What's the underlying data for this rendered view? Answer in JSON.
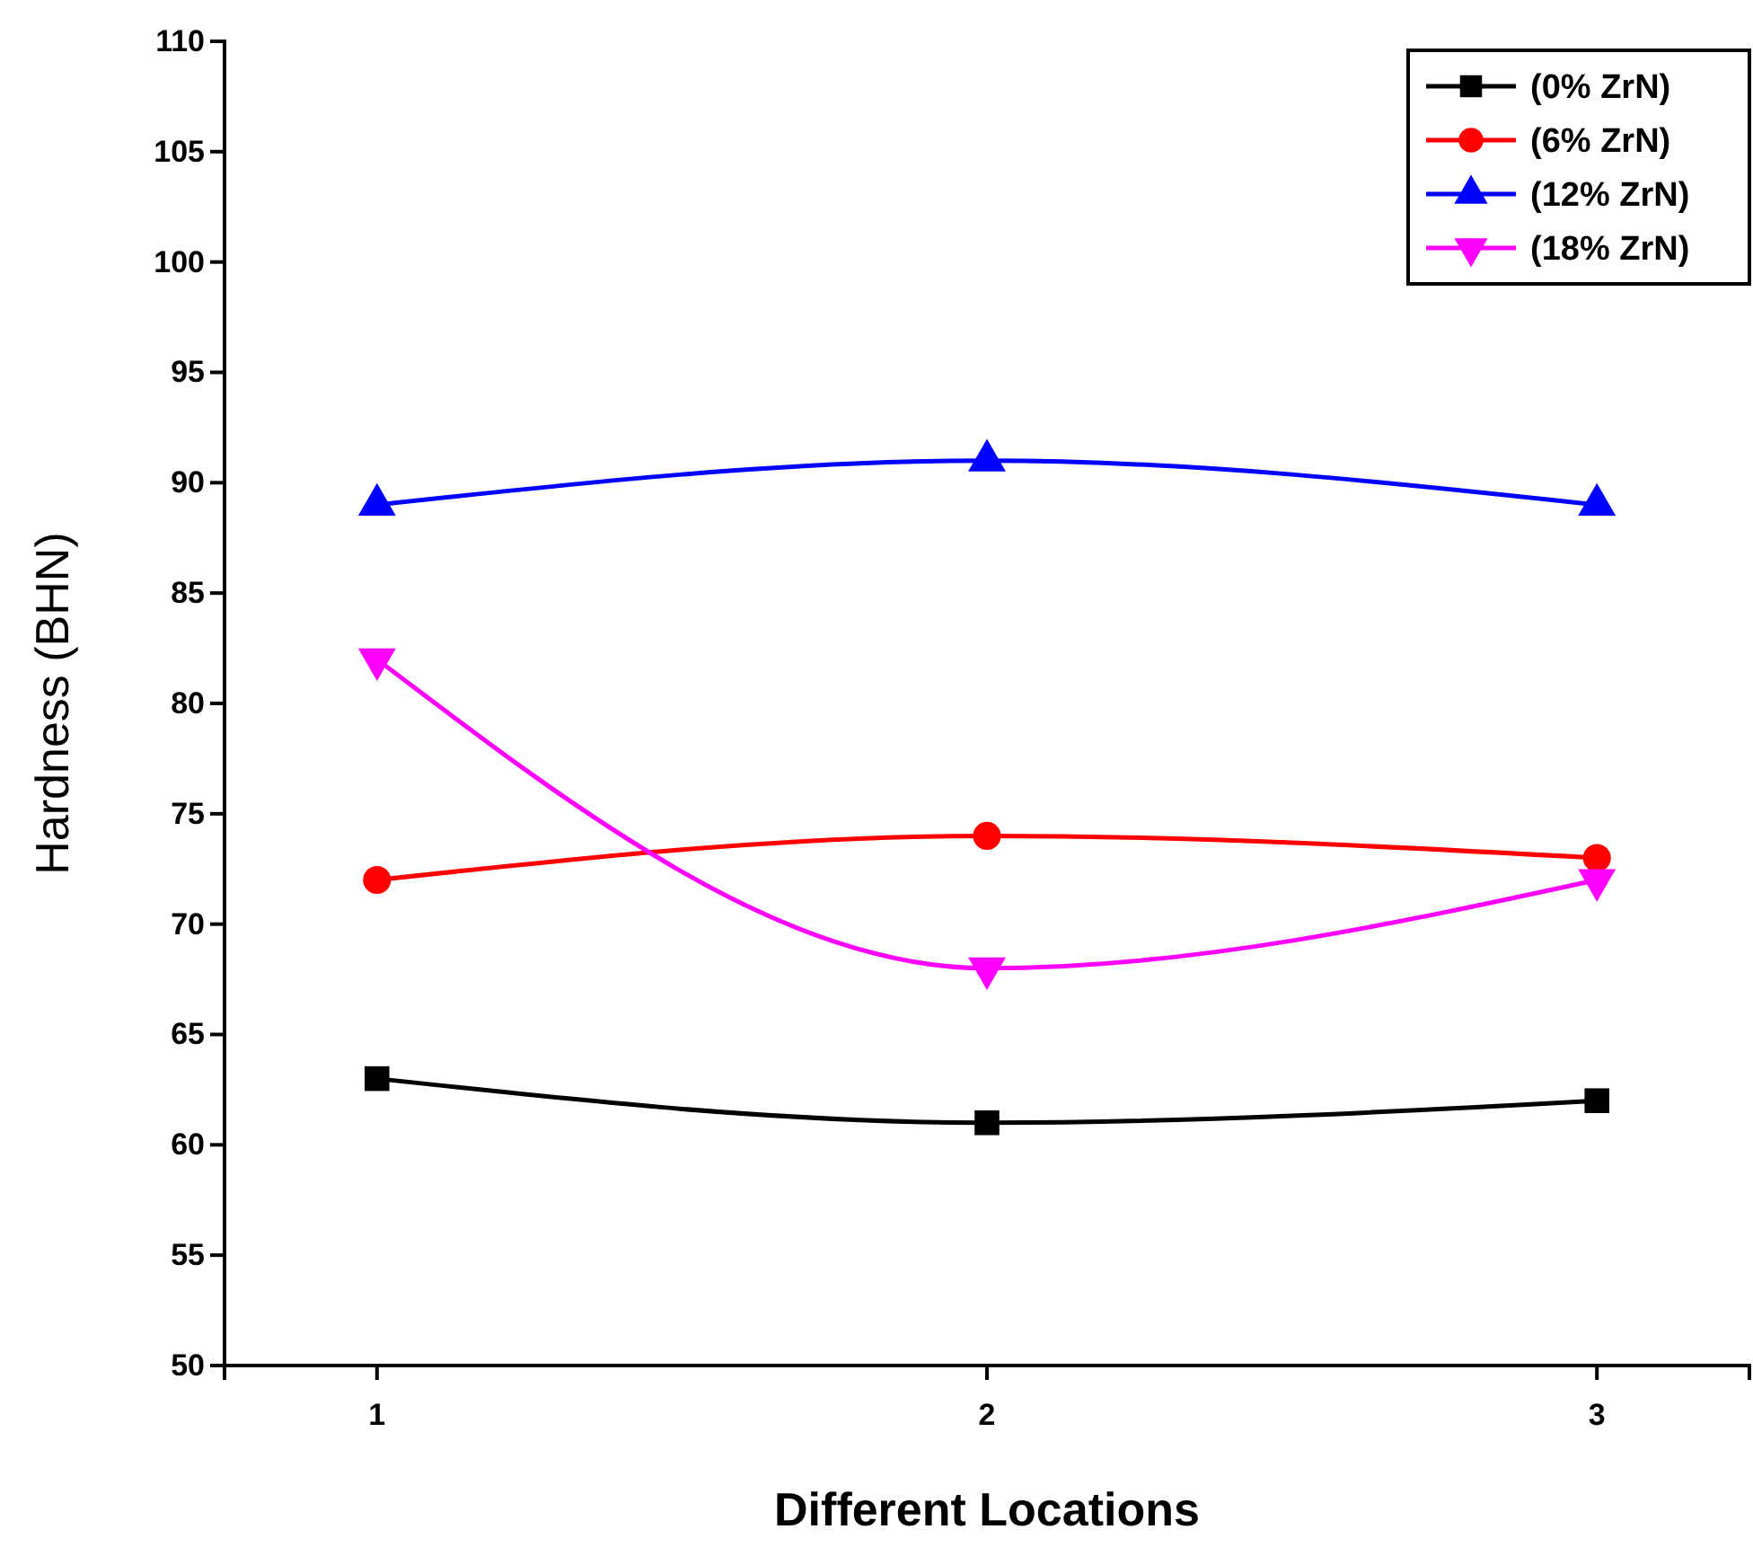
{
  "chart_data": {
    "type": "line",
    "xlabel": "Different Locations",
    "ylabel": "Hardness (BHN)",
    "x": [
      1,
      2,
      3
    ],
    "xlim": [
      0.75,
      3.25
    ],
    "xticks": [
      1,
      2,
      3
    ],
    "ylim": [
      50,
      110
    ],
    "yticks": [
      50,
      55,
      60,
      65,
      70,
      75,
      80,
      85,
      90,
      95,
      100,
      105,
      110
    ],
    "grid": false,
    "legend": "top right",
    "line_style": "solid",
    "series": [
      {
        "name": "(0% ZrN)",
        "color": "#000000",
        "marker": "square",
        "values": [
          63,
          61,
          62
        ]
      },
      {
        "name": "(6% ZrN)",
        "color": "#ff0000",
        "marker": "circle",
        "values": [
          72,
          74,
          73
        ]
      },
      {
        "name": "(12% ZrN)",
        "color": "#0000ff",
        "marker": "triangle",
        "values": [
          89,
          91,
          89
        ]
      },
      {
        "name": "(18% ZrN)",
        "color": "#ff00ff",
        "marker": "triangle-down",
        "values": [
          82,
          68,
          72
        ]
      }
    ]
  }
}
